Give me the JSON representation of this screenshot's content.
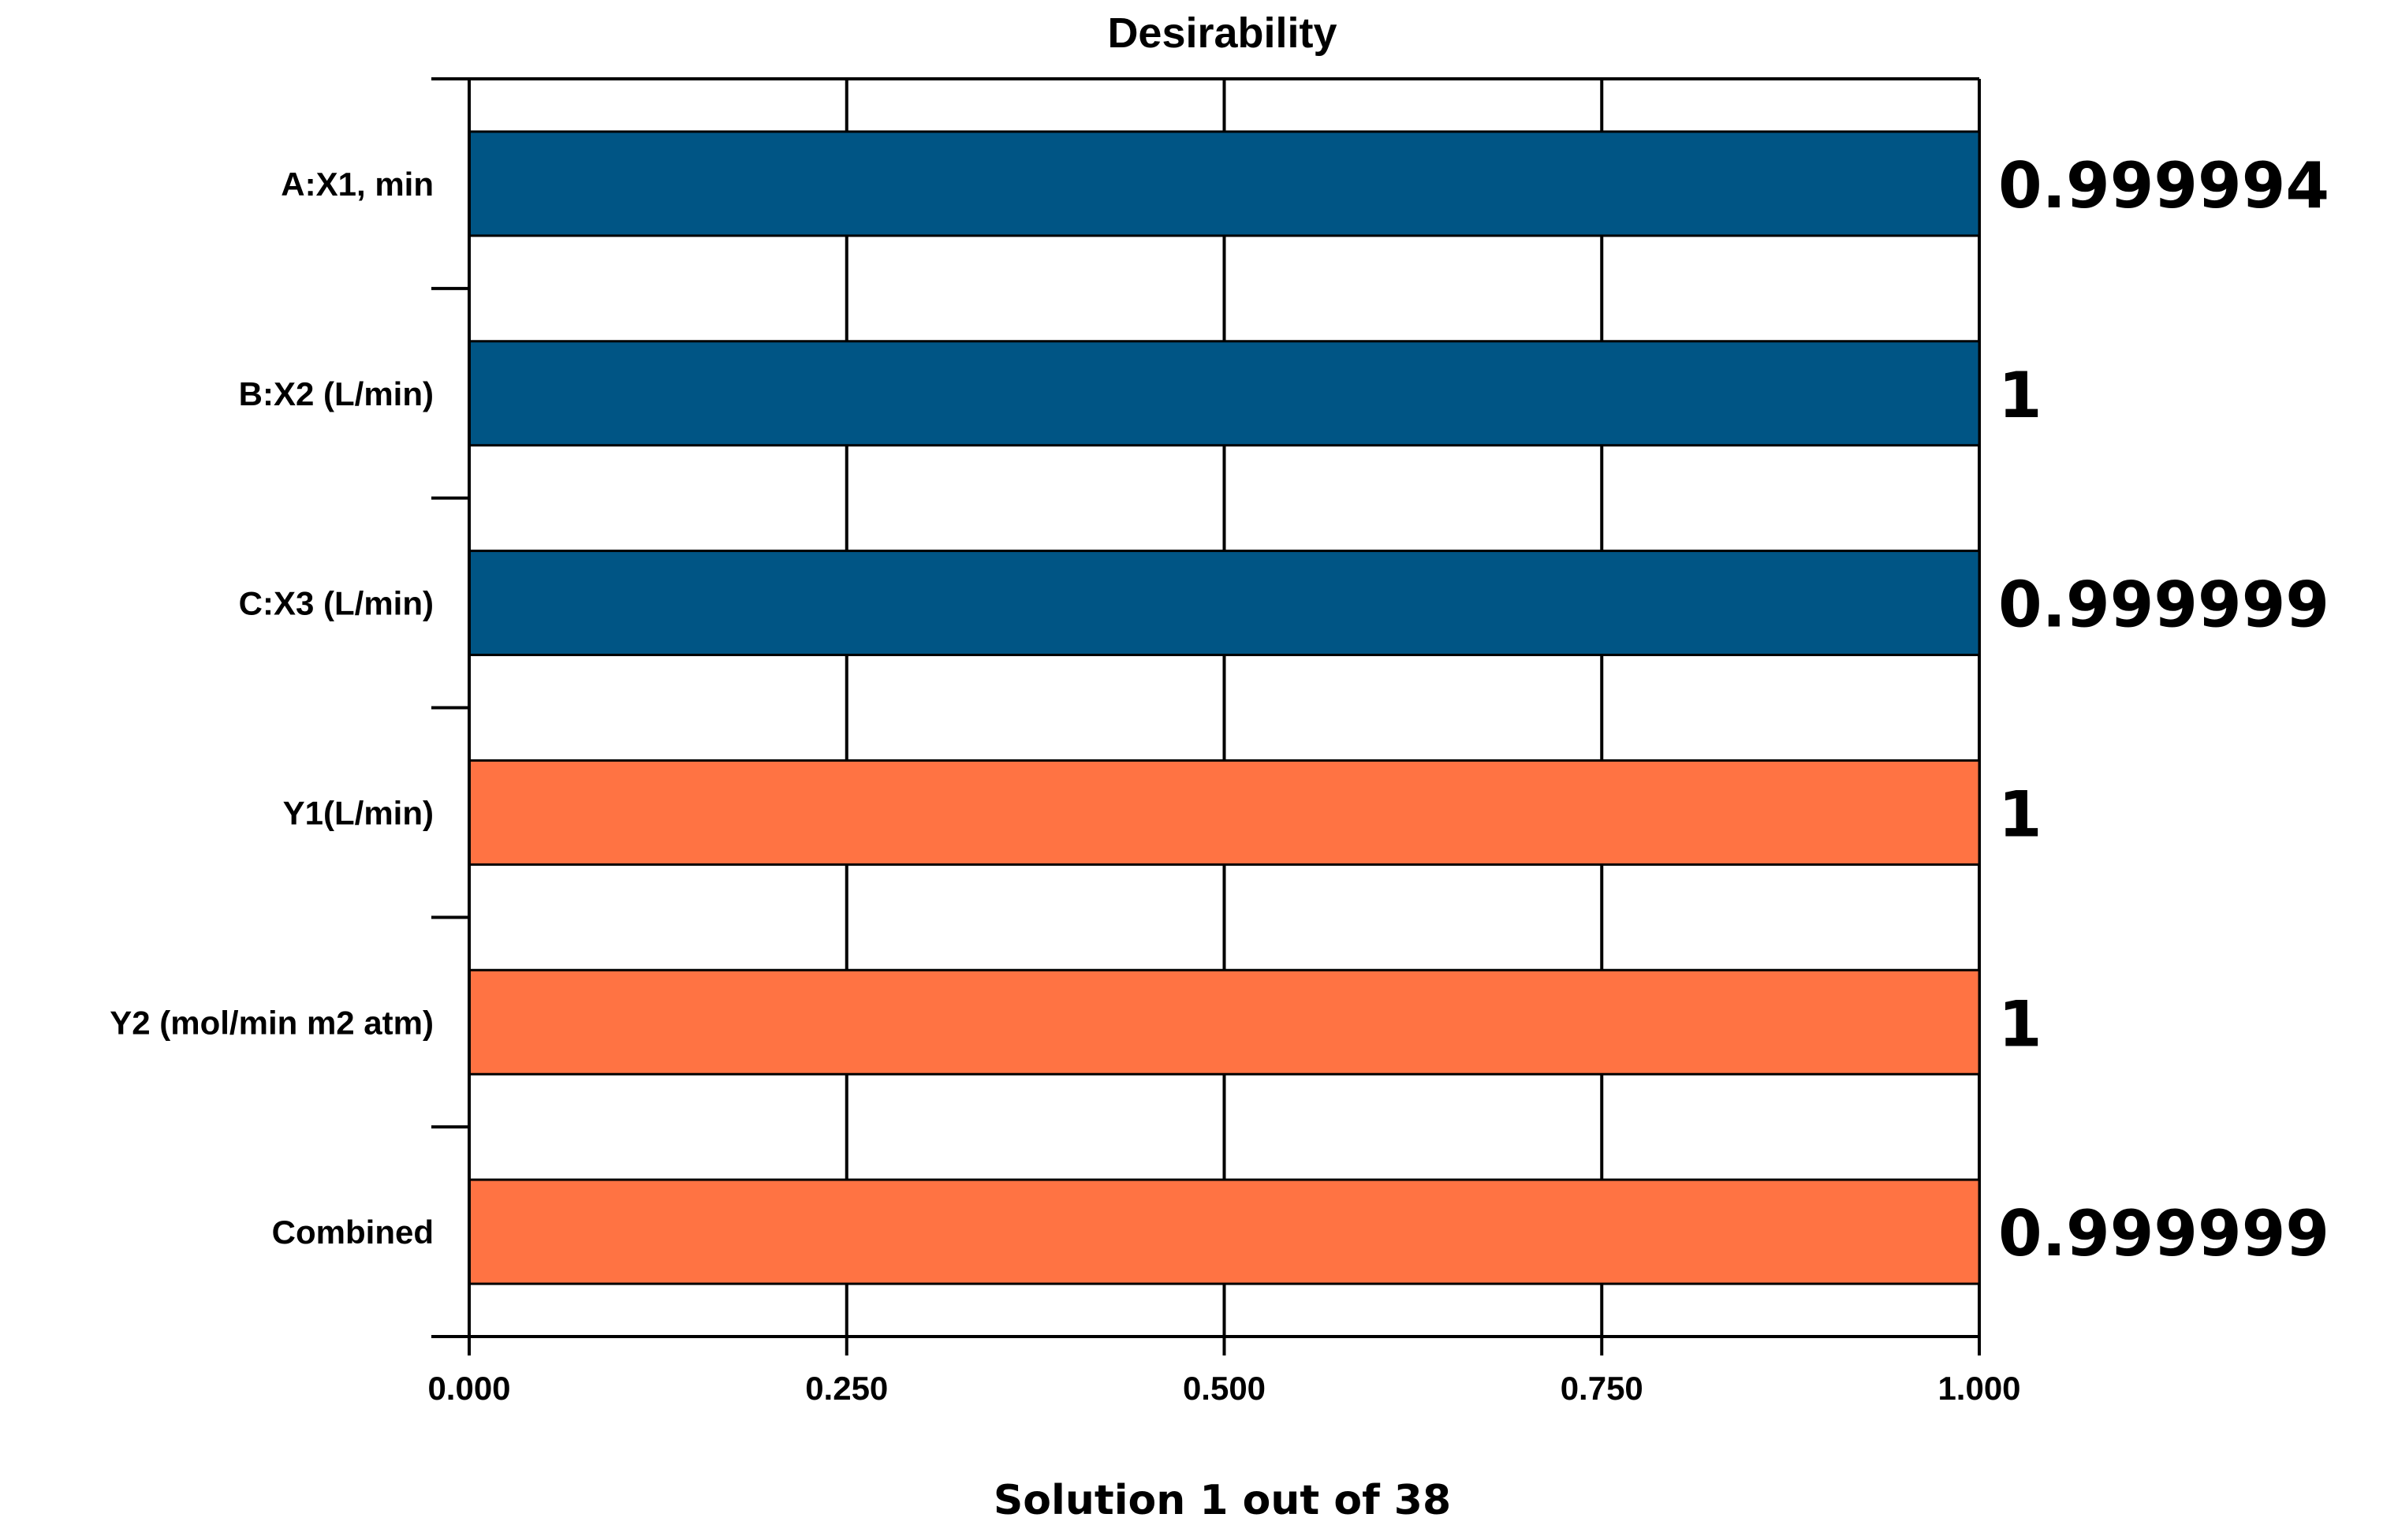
{
  "chart_data": {
    "type": "bar",
    "orientation": "horizontal",
    "title": "Desirability",
    "xlabel": "Solution 1 out of 38",
    "ylabel": "",
    "categories": [
      "A:X1, min",
      "B:X2 (L/min)",
      "C:X3 (L/min)",
      "Y1(L/min)",
      "Y2 (mol/min m2 atm)",
      "Combined"
    ],
    "values": [
      0.999994,
      1,
      0.999999,
      1,
      1,
      0.999999
    ],
    "value_labels": [
      "0.999994",
      "1",
      "0.999999",
      "1",
      "1",
      "0.999999"
    ],
    "bar_colors": [
      "#005585",
      "#005585",
      "#005585",
      "#FF7343",
      "#FF7343",
      "#FF7343"
    ],
    "xlim": [
      0,
      1
    ],
    "xticks": [
      0,
      0.25,
      0.5,
      0.75,
      1
    ],
    "xtick_labels": [
      "0.000",
      "0.250",
      "0.500",
      "0.750",
      "1.000"
    ],
    "grid": true,
    "legend": "none"
  }
}
